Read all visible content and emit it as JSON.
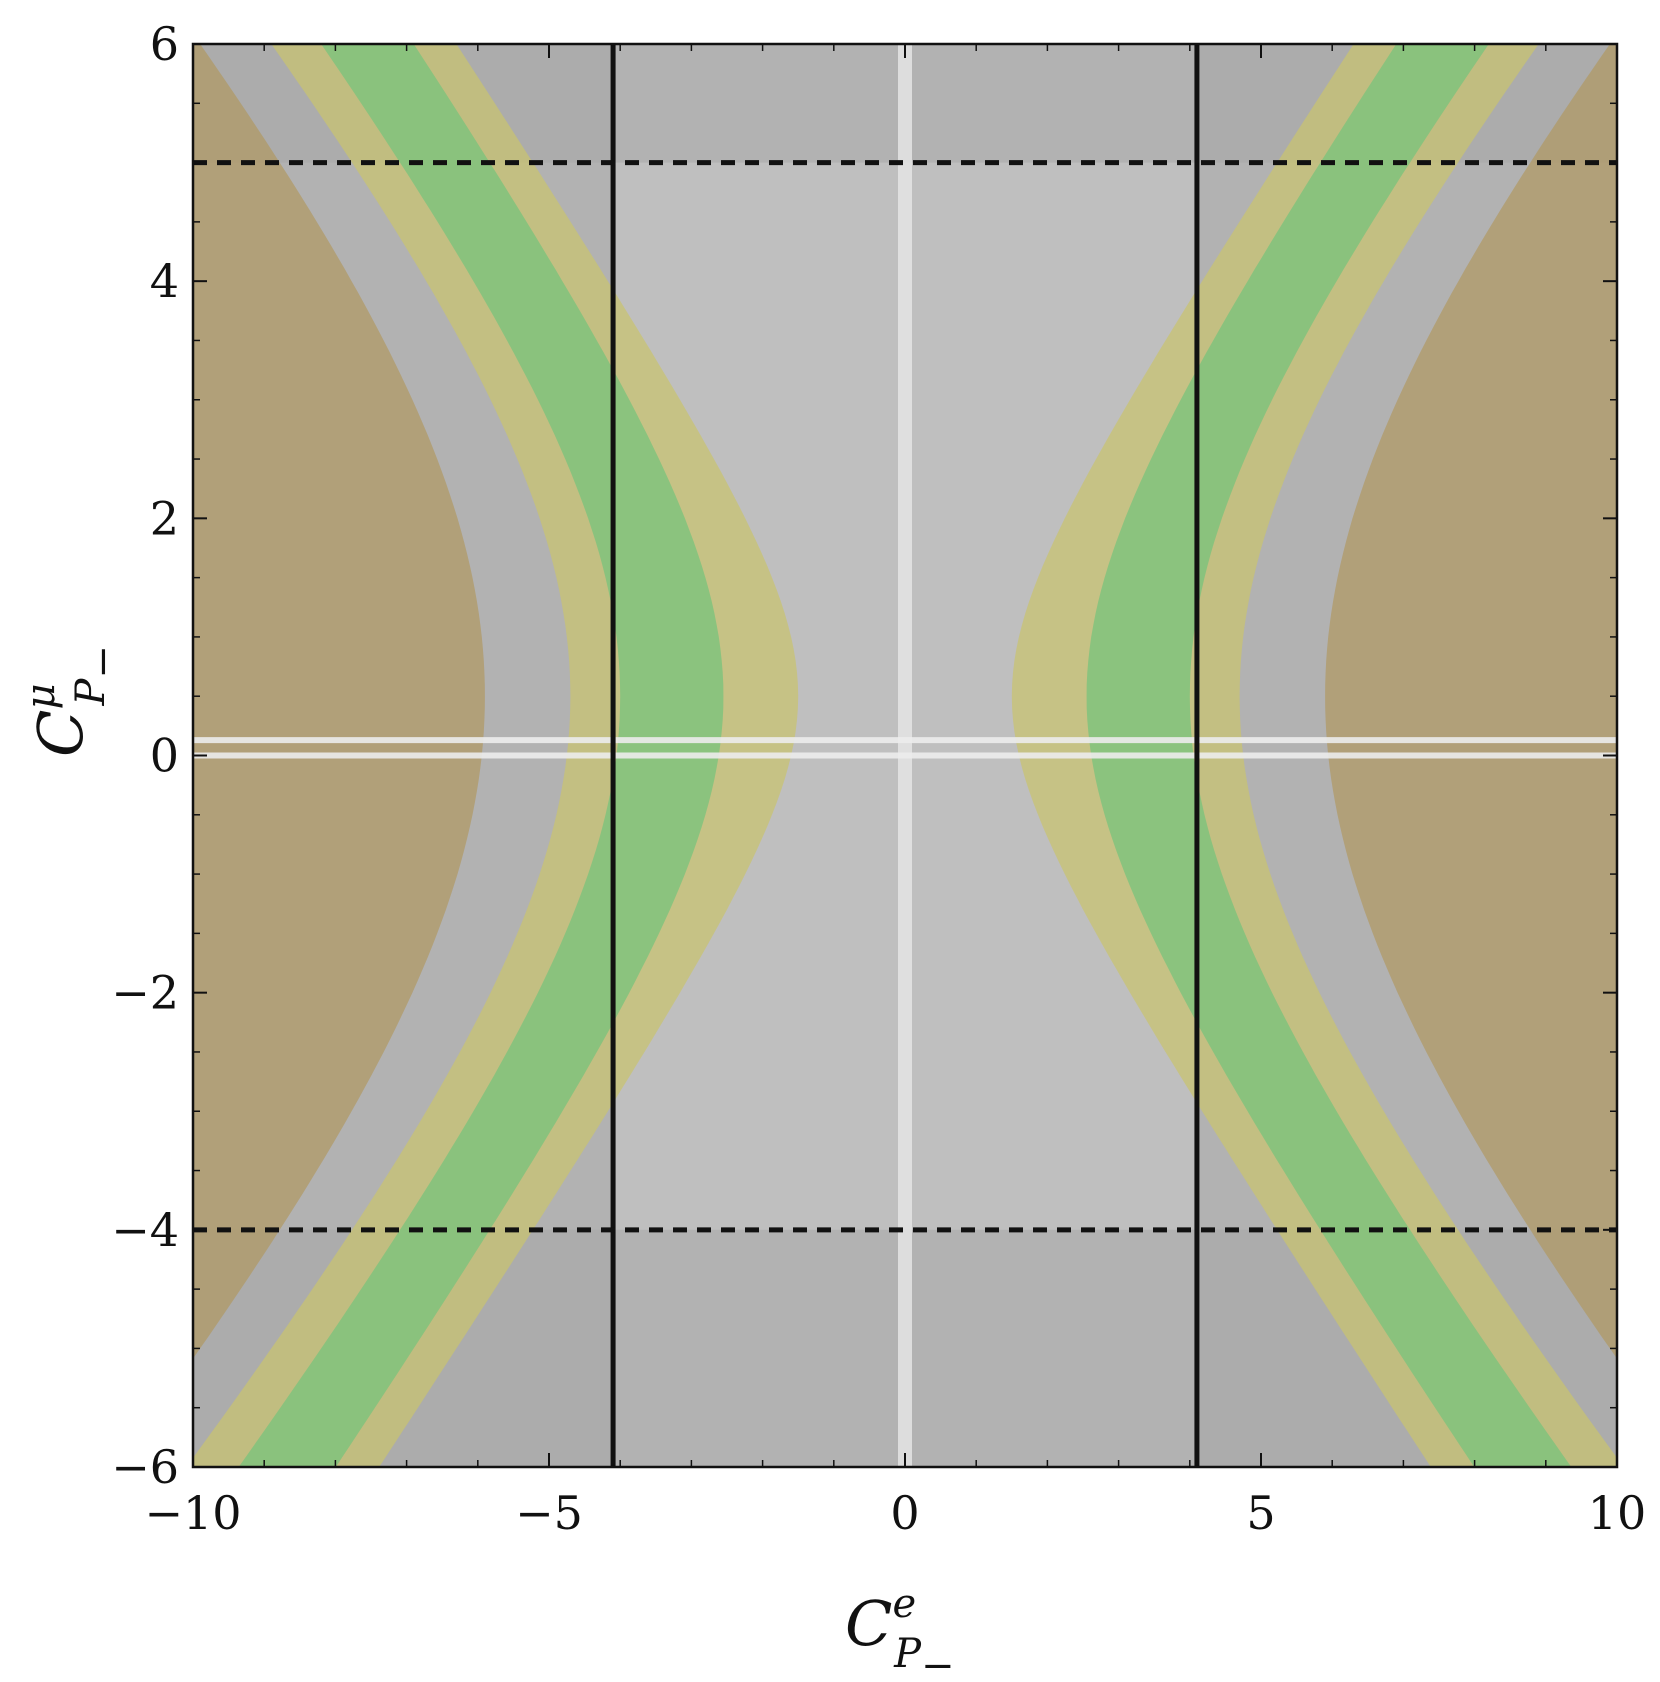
{
  "chart_data": {
    "type": "area",
    "title": "",
    "xlabel": {
      "base": "C",
      "sup": "e",
      "sub": "P",
      "sub2": "−"
    },
    "ylabel": {
      "base": "C",
      "sup": "μ",
      "sub": "P",
      "sub2": "−"
    },
    "xlim": [
      -10,
      10
    ],
    "ylim": [
      -6,
      6
    ],
    "xticks": [
      -10,
      -5,
      0,
      5,
      10
    ],
    "xtick_labels": [
      "−10",
      "−5",
      "0",
      "5",
      "10"
    ],
    "yticks": [
      -6,
      -4,
      -2,
      0,
      2,
      4,
      6
    ],
    "ytick_labels": [
      "−6",
      "−4",
      "−2",
      "0",
      "2",
      "4",
      "6"
    ],
    "grid": false,
    "legend": "none",
    "excluded_regions": {
      "color": "#a8a8a8",
      "x_excluded_outside": [
        -4.1,
        4.1
      ],
      "y_excluded_above": 5.0,
      "y_excluded_below": -4.0
    },
    "boundary_lines": {
      "vertical_solid_x": [
        -4.1,
        4.1
      ],
      "horizontal_dashed_y": [
        5.0,
        -4.0
      ]
    },
    "zero_lines": {
      "vertical_x": 0,
      "horizontal_y": [
        0.0,
        0.13
      ]
    },
    "series": [
      {
        "color": "#c9c46f",
        "band": "hyperbolic",
        "center_y": 0.5,
        "x_inner_vertex": 1.5,
        "x_outer_vertex": 4.7,
        "x_at_y_6_inner": 6.3,
        "x_at_y_6_outer": 8.9
      },
      {
        "color": "#74c47c",
        "band": "hyperbolic",
        "center_y": 0.5,
        "x_inner_vertex": 2.55,
        "x_outer_vertex": 4.0,
        "x_at_y_6_inner": 6.9,
        "x_at_y_6_outer": 8.2
      },
      {
        "color": "#b09a66",
        "band": "outer",
        "center_y": 0.5,
        "x_vertex": 5.9,
        "x_at_y_6": 9.9
      }
    ]
  }
}
